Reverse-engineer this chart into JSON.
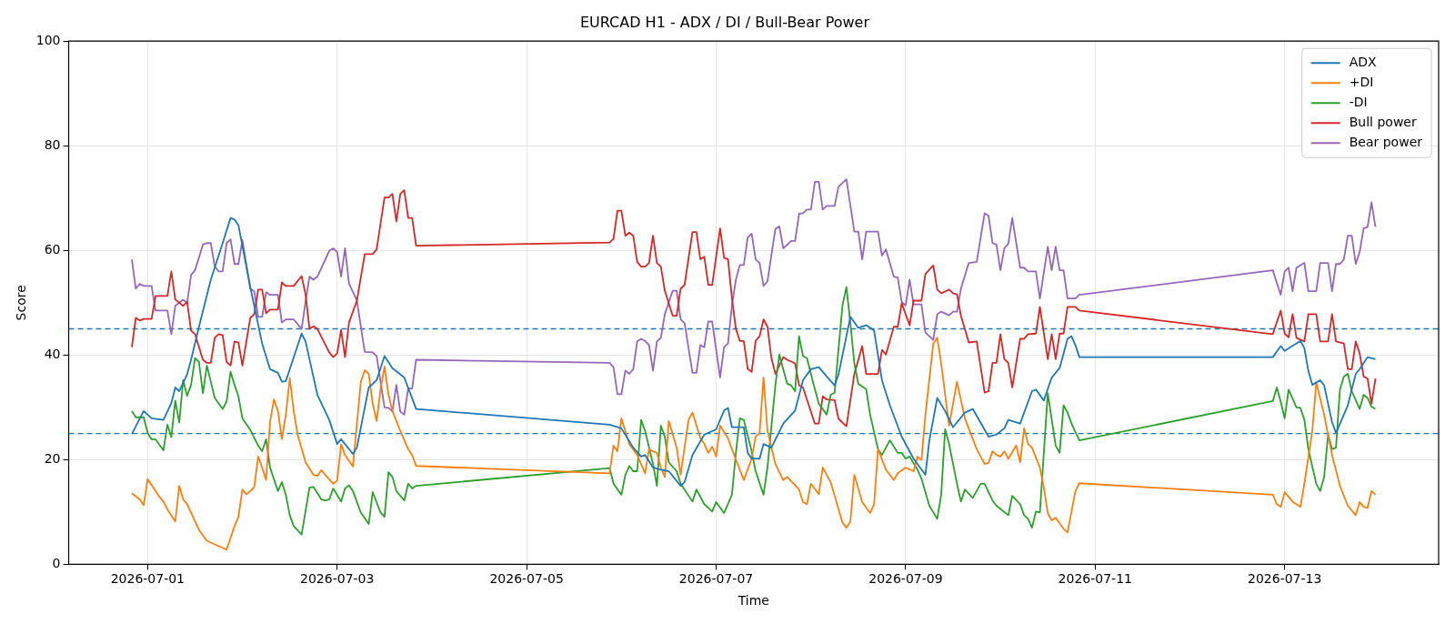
{
  "chart_data": {
    "type": "line",
    "title": "EURCAD H1 - ADX / DI / Bull-Bear Power",
    "xlabel": "Time",
    "ylabel": "Score",
    "xlim": [
      "2026-06-30T04:00",
      "2026-07-14T15:00"
    ],
    "xticks": [
      "2026-07-01",
      "2026-07-03",
      "2026-07-05",
      "2026-07-07",
      "2026-07-09",
      "2026-07-11",
      "2026-07-13"
    ],
    "ylim": [
      0,
      100
    ],
    "yticks": [
      0,
      20,
      40,
      60,
      80,
      100
    ],
    "grid": true,
    "legend": "top right",
    "ref_lines": [
      {
        "axis": "y",
        "value": 45,
        "color": "#1f77b4",
        "line_style": "dashed"
      },
      {
        "axis": "y",
        "value": 25,
        "color": "#1f77b4",
        "line_style": "dashed"
      }
    ],
    "series": [
      {
        "name": "ADX",
        "color": "#1f77b4",
        "x": [
          "2026-06-30T20:00",
          "2026-06-30T23:00",
          "2026-07-01T01:00",
          "2026-07-01T04:00",
          "2026-07-01T06:00",
          "2026-07-01T07:00",
          "2026-07-01T08:00",
          "2026-07-01T10:00",
          "2026-07-01T11:00",
          "2026-07-01T13:00",
          "2026-07-01T16:00",
          "2026-07-01T19:00",
          "2026-07-01T21:00",
          "2026-07-01T22:00",
          "2026-07-01T23:00",
          "2026-07-02T02:00",
          "2026-07-02T05:00",
          "2026-07-02T07:00",
          "2026-07-02T09:00",
          "2026-07-02T10:00",
          "2026-07-02T11:00",
          "2026-07-02T15:00",
          "2026-07-02T16:00",
          "2026-07-02T19:00",
          "2026-07-02T22:00",
          "2026-07-03T00:00",
          "2026-07-03T01:00",
          "2026-07-03T04:00",
          "2026-07-03T05:00",
          "2026-07-03T08:00",
          "2026-07-03T10:00",
          "2026-07-03T12:00",
          "2026-07-03T14:00",
          "2026-07-03T17:00",
          "2026-07-03T20:00",
          "2026-07-05T21:00",
          "2026-07-06T00:00",
          "2026-07-06T03:00",
          "2026-07-06T05:00",
          "2026-07-06T06:00",
          "2026-07-06T08:00",
          "2026-07-06T10:00",
          "2026-07-06T12:00",
          "2026-07-06T15:00",
          "2026-07-06T16:00",
          "2026-07-06T18:00",
          "2026-07-06T21:00",
          "2026-07-07T00:00",
          "2026-07-07T02:00",
          "2026-07-07T03:00",
          "2026-07-07T04:00",
          "2026-07-07T07:00",
          "2026-07-07T08:00",
          "2026-07-07T09:00",
          "2026-07-07T11:00",
          "2026-07-07T12:00",
          "2026-07-07T14:00",
          "2026-07-07T17:00",
          "2026-07-07T20:00",
          "2026-07-07T22:00",
          "2026-07-08T00:00",
          "2026-07-08T02:00",
          "2026-07-08T04:00",
          "2026-07-08T06:00",
          "2026-07-08T07:00",
          "2026-07-08T10:00",
          "2026-07-08T12:00",
          "2026-07-08T14:00",
          "2026-07-08T16:00",
          "2026-07-08T18:00",
          "2026-07-08T20:00",
          "2026-07-08T23:00",
          "2026-07-09T02:00",
          "2026-07-09T05:00",
          "2026-07-09T06:00",
          "2026-07-09T08:00",
          "2026-07-09T10:00",
          "2026-07-09T12:00",
          "2026-07-09T15:00",
          "2026-07-09T17:00",
          "2026-07-09T21:00",
          "2026-07-09T23:00",
          "2026-07-10T01:00",
          "2026-07-10T02:00",
          "2026-07-10T05:00",
          "2026-07-10T08:00",
          "2026-07-10T09:00",
          "2026-07-10T11:00",
          "2026-07-10T13:00",
          "2026-07-10T15:00",
          "2026-07-10T17:00",
          "2026-07-10T18:00",
          "2026-07-10T19:00",
          "2026-07-10T20:00",
          "2026-07-12T21:00",
          "2026-07-12T23:00",
          "2026-07-13T00:00",
          "2026-07-13T04:00",
          "2026-07-13T05:00",
          "2026-07-13T06:00",
          "2026-07-13T07:00",
          "2026-07-13T09:00",
          "2026-07-13T10:00",
          "2026-07-13T12:00",
          "2026-07-13T13:00",
          "2026-07-13T16:00",
          "2026-07-13T18:00",
          "2026-07-13T19:00",
          "2026-07-13T21:00",
          "2026-07-13T23:00"
        ],
        "values": [
          24.9,
          29.3,
          27.9,
          27.6,
          30.8,
          33.8,
          33.1,
          36.3,
          39.1,
          45.4,
          54.4,
          61.4,
          66.2,
          65.9,
          64.8,
          53.0,
          42.2,
          37.3,
          36.6,
          34.9,
          35.0,
          44.1,
          42.6,
          32.4,
          27.6,
          23.0,
          23.9,
          21.1,
          22.3,
          33.8,
          35.2,
          39.8,
          37.5,
          35.7,
          29.7,
          26.7,
          26.0,
          22.3,
          20.6,
          20.9,
          18.5,
          18.1,
          17.8,
          15.0,
          15.7,
          20.9,
          24.8,
          25.8,
          29.4,
          29.9,
          26.2,
          26.2,
          21.3,
          20.2,
          20.2,
          23.0,
          22.3,
          26.9,
          29.4,
          35.2,
          37.3,
          37.7,
          35.9,
          34.2,
          36.3,
          47.3,
          45.2,
          45.7,
          44.7,
          35.2,
          30.4,
          24.4,
          20.2,
          17.1,
          23.7,
          31.8,
          29.3,
          26.2,
          29.0,
          29.7,
          24.4,
          24.8,
          26.0,
          27.6,
          26.9,
          33.1,
          33.4,
          31.3,
          35.7,
          37.5,
          43.1,
          43.6,
          41.9,
          39.6,
          39.6,
          41.7,
          40.8,
          42.7,
          41.3,
          37.0,
          34.3,
          35.2,
          34.2,
          27.2,
          25.1,
          30.4,
          36.4,
          37.3,
          39.6,
          39.2
        ]
      },
      {
        "name": "+DI",
        "color": "#ff7f0e",
        "x": [
          "2026-06-30T20:00",
          "2026-06-30T22:00",
          "2026-06-30T23:00",
          "2026-07-01T00:00",
          "2026-07-01T03:00",
          "2026-07-01T04:00",
          "2026-07-01T05:00",
          "2026-07-01T07:00",
          "2026-07-01T08:00",
          "2026-07-01T09:00",
          "2026-07-01T10:00",
          "2026-07-01T13:00",
          "2026-07-01T15:00",
          "2026-07-01T17:00",
          "2026-07-01T20:00",
          "2026-07-01T22:00",
          "2026-07-01T23:00",
          "2026-07-02T00:00",
          "2026-07-02T01:00",
          "2026-07-02T02:00",
          "2026-07-02T03:00",
          "2026-07-02T04:00",
          "2026-07-02T05:00",
          "2026-07-02T06:00",
          "2026-07-02T07:00",
          "2026-07-02T08:00",
          "2026-07-02T09:00",
          "2026-07-02T10:00",
          "2026-07-02T11:00",
          "2026-07-02T12:00",
          "2026-07-02T13:00",
          "2026-07-02T14:00",
          "2026-07-02T16:00",
          "2026-07-02T18:00",
          "2026-07-02T19:00",
          "2026-07-02T20:00",
          "2026-07-02T21:00",
          "2026-07-02T23:00",
          "2026-07-03T00:00",
          "2026-07-03T01:00",
          "2026-07-03T02:00",
          "2026-07-03T04:00",
          "2026-07-03T06:00",
          "2026-07-03T07:00",
          "2026-07-03T08:00",
          "2026-07-03T09:00",
          "2026-07-03T10:00",
          "2026-07-03T11:00",
          "2026-07-03T12:00",
          "2026-07-03T13:00",
          "2026-07-03T14:00",
          "2026-07-03T16:00",
          "2026-07-03T18:00",
          "2026-07-03T19:00",
          "2026-07-03T20:00",
          "2026-07-05T21:00",
          "2026-07-05T22:00",
          "2026-07-05T23:00",
          "2026-07-06T00:00",
          "2026-07-06T02:00",
          "2026-07-06T04:00",
          "2026-07-06T06:00",
          "2026-07-06T07:00",
          "2026-07-06T08:00",
          "2026-07-06T09:00",
          "2026-07-06T10:00",
          "2026-07-06T11:00",
          "2026-07-06T12:00",
          "2026-07-06T14:00",
          "2026-07-06T15:00",
          "2026-07-06T17:00",
          "2026-07-06T18:00",
          "2026-07-06T20:00",
          "2026-07-06T21:00",
          "2026-07-06T22:00",
          "2026-07-06T23:00",
          "2026-07-07T00:00",
          "2026-07-07T01:00",
          "2026-07-07T03:00",
          "2026-07-07T04:00",
          "2026-07-07T07:00",
          "2026-07-07T09:00",
          "2026-07-07T10:00",
          "2026-07-07T11:00",
          "2026-07-07T12:00",
          "2026-07-07T13:00",
          "2026-07-07T15:00",
          "2026-07-07T17:00",
          "2026-07-07T18:00",
          "2026-07-07T21:00",
          "2026-07-07T22:00",
          "2026-07-07T23:00",
          "2026-07-08T00:00",
          "2026-07-08T02:00",
          "2026-07-08T03:00",
          "2026-07-08T05:00",
          "2026-07-08T08:00",
          "2026-07-08T09:00",
          "2026-07-08T10:00",
          "2026-07-08T11:00",
          "2026-07-08T13:00",
          "2026-07-08T15:00",
          "2026-07-08T16:00",
          "2026-07-08T17:00",
          "2026-07-08T19:00",
          "2026-07-08T21:00",
          "2026-07-08T22:00",
          "2026-07-09T00:00",
          "2026-07-09T02:00",
          "2026-07-09T03:00",
          "2026-07-09T04:00",
          "2026-07-09T05:00",
          "2026-07-09T07:00",
          "2026-07-09T08:00",
          "2026-07-09T09:00",
          "2026-07-09T11:00",
          "2026-07-09T13:00",
          "2026-07-09T15:00",
          "2026-07-09T18:00",
          "2026-07-09T20:00",
          "2026-07-09T21:00",
          "2026-07-09T22:00",
          "2026-07-09T23:00",
          "2026-07-10T00:00",
          "2026-07-10T01:00",
          "2026-07-10T02:00",
          "2026-07-10T04:00",
          "2026-07-10T05:00",
          "2026-07-10T06:00",
          "2026-07-10T07:00",
          "2026-07-10T08:00",
          "2026-07-10T10:00",
          "2026-07-10T11:00",
          "2026-07-10T12:00",
          "2026-07-10T13:00",
          "2026-07-10T14:00",
          "2026-07-10T16:00",
          "2026-07-10T17:00",
          "2026-07-10T19:00",
          "2026-07-10T20:00",
          "2026-07-12T21:00",
          "2026-07-12T22:00",
          "2026-07-12T23:00",
          "2026-07-13T00:00",
          "2026-07-13T02:00",
          "2026-07-13T04:00",
          "2026-07-13T05:00",
          "2026-07-13T07:00",
          "2026-07-13T08:00",
          "2026-07-13T10:00",
          "2026-07-13T12:00",
          "2026-07-13T14:00",
          "2026-07-13T16:00",
          "2026-07-13T18:00",
          "2026-07-13T19:00",
          "2026-07-13T20:00",
          "2026-07-13T21:00",
          "2026-07-13T22:00",
          "2026-07-13T23:00"
        ],
        "values": [
          13.6,
          12.4,
          11.3,
          16.3,
          12.9,
          12.0,
          10.5,
          8.2,
          15.0,
          12.4,
          11.5,
          6.6,
          4.5,
          3.8,
          2.8,
          7.3,
          9.1,
          14.3,
          13.4,
          14.0,
          14.8,
          20.6,
          18.5,
          16.1,
          27.2,
          31.5,
          29.3,
          23.9,
          28.6,
          35.6,
          29.3,
          24.8,
          19.5,
          17.1,
          16.9,
          18.0,
          17.1,
          15.4,
          16.0,
          22.9,
          20.9,
          18.7,
          34.9,
          37.1,
          36.4,
          30.7,
          27.4,
          33.5,
          37.8,
          32.4,
          29.3,
          25.5,
          22.0,
          20.9,
          18.8,
          17.4,
          22.7,
          21.6,
          27.9,
          23.0,
          20.9,
          17.4,
          22.0,
          21.6,
          21.3,
          18.5,
          16.7,
          27.4,
          22.3,
          17.1,
          27.6,
          29.0,
          24.1,
          23.0,
          21.3,
          22.5,
          20.6,
          26.5,
          24.1,
          22.0,
          16.1,
          20.2,
          24.4,
          25.1,
          35.7,
          25.5,
          19.2,
          16.1,
          16.7,
          14.3,
          11.9,
          11.5,
          15.4,
          13.4,
          18.5,
          15.7,
          8.0,
          7.0,
          8.2,
          17.1,
          11.9,
          9.8,
          11.5,
          22.0,
          18.1,
          16.1,
          17.4,
          18.5,
          17.8,
          20.6,
          19.9,
          28.6,
          42.2,
          43.3,
          38.4,
          26.5,
          34.9,
          27.9,
          22.0,
          19.2,
          19.4,
          21.6,
          20.9,
          20.6,
          21.6,
          20.2,
          22.7,
          19.5,
          26.0,
          23.0,
          22.3,
          18.5,
          14.7,
          9.8,
          8.4,
          8.9,
          6.8,
          6.1,
          14.0,
          15.5,
          13.3,
          11.5,
          11.0,
          13.8,
          12.0,
          11.0,
          15.5,
          25.5,
          34.8,
          28.6,
          20.9,
          15.0,
          11.2,
          9.4,
          11.9,
          11.0,
          10.8,
          14.0,
          13.3
        ]
      },
      {
        "name": "-DI",
        "color": "#2ca02c",
        "x": [
          "2026-06-30T20:00",
          "2026-06-30T21:00",
          "2026-06-30T23:00",
          "2026-07-01T00:00",
          "2026-07-01T01:00",
          "2026-07-01T02:00",
          "2026-07-01T04:00",
          "2026-07-01T05:00",
          "2026-07-01T06:00",
          "2026-07-01T07:00",
          "2026-07-01T08:00",
          "2026-07-01T09:00",
          "2026-07-01T10:00",
          "2026-07-01T11:00",
          "2026-07-01T12:00",
          "2026-07-01T13:00",
          "2026-07-01T14:00",
          "2026-07-01T15:00",
          "2026-07-01T16:00",
          "2026-07-01T17:00",
          "2026-07-01T19:00",
          "2026-07-01T20:00",
          "2026-07-01T21:00",
          "2026-07-01T22:00",
          "2026-07-01T23:00",
          "2026-07-02T00:00",
          "2026-07-02T02:00",
          "2026-07-02T04:00",
          "2026-07-02T05:00",
          "2026-07-02T06:00",
          "2026-07-02T07:00",
          "2026-07-02T09:00",
          "2026-07-02T10:00",
          "2026-07-02T11:00",
          "2026-07-02T12:00",
          "2026-07-02T13:00",
          "2026-07-02T15:00",
          "2026-07-02T17:00",
          "2026-07-02T18:00",
          "2026-07-02T20:00",
          "2026-07-02T21:00",
          "2026-07-02T22:00",
          "2026-07-02T23:00",
          "2026-07-03T01:00",
          "2026-07-03T02:00",
          "2026-07-03T03:00",
          "2026-07-03T04:00",
          "2026-07-03T06:00",
          "2026-07-03T08:00",
          "2026-07-03T09:00",
          "2026-07-03T11:00",
          "2026-07-03T12:00",
          "2026-07-03T13:00",
          "2026-07-03T14:00",
          "2026-07-03T15:00",
          "2026-07-03T17:00",
          "2026-07-03T18:00",
          "2026-07-03T19:00",
          "2026-07-03T20:00",
          "2026-07-05T21:00",
          "2026-07-05T22:00",
          "2026-07-06T00:00",
          "2026-07-06T01:00",
          "2026-07-06T02:00",
          "2026-07-06T03:00",
          "2026-07-06T04:00",
          "2026-07-06T05:00",
          "2026-07-06T06:00",
          "2026-07-06T08:00",
          "2026-07-06T09:00",
          "2026-07-06T10:00",
          "2026-07-06T11:00",
          "2026-07-06T12:00",
          "2026-07-06T14:00",
          "2026-07-06T15:00",
          "2026-07-06T18:00",
          "2026-07-06T19:00",
          "2026-07-06T21:00",
          "2026-07-06T23:00",
          "2026-07-07T00:00",
          "2026-07-07T02:00",
          "2026-07-07T04:00",
          "2026-07-07T05:00",
          "2026-07-07T06:00",
          "2026-07-07T07:00",
          "2026-07-07T09:00",
          "2026-07-07T10:00",
          "2026-07-07T12:00",
          "2026-07-07T13:00",
          "2026-07-07T15:00",
          "2026-07-07T16:00",
          "2026-07-07T18:00",
          "2026-07-07T19:00",
          "2026-07-07T20:00",
          "2026-07-07T21:00",
          "2026-07-07T22:00",
          "2026-07-07T23:00",
          "2026-07-08T01:00",
          "2026-07-08T02:00",
          "2026-07-08T04:00",
          "2026-07-08T05:00",
          "2026-07-08T06:00",
          "2026-07-08T08:00",
          "2026-07-08T09:00",
          "2026-07-08T10:00",
          "2026-07-08T11:00",
          "2026-07-08T12:00",
          "2026-07-08T14:00",
          "2026-07-08T15:00",
          "2026-07-08T17:00",
          "2026-07-08T18:00",
          "2026-07-08T20:00",
          "2026-07-08T22:00",
          "2026-07-08T23:00",
          "2026-07-09T00:00",
          "2026-07-09T01:00",
          "2026-07-09T03:00",
          "2026-07-09T04:00",
          "2026-07-09T06:00",
          "2026-07-09T08:00",
          "2026-07-09T09:00",
          "2026-07-09T10:00",
          "2026-07-09T11:00",
          "2026-07-09T13:00",
          "2026-07-09T14:00",
          "2026-07-09T15:00",
          "2026-07-09T17:00",
          "2026-07-09T19:00",
          "2026-07-09T20:00",
          "2026-07-09T22:00",
          "2026-07-09T23:00",
          "2026-07-10T02:00",
          "2026-07-10T03:00",
          "2026-07-10T05:00",
          "2026-07-10T06:00",
          "2026-07-10T07:00",
          "2026-07-10T08:00",
          "2026-07-10T09:00",
          "2026-07-10T10:00",
          "2026-07-10T12:00",
          "2026-07-10T14:00",
          "2026-07-10T15:00",
          "2026-07-10T16:00",
          "2026-07-10T17:00",
          "2026-07-10T18:00",
          "2026-07-10T20:00",
          "2026-07-12T21:00",
          "2026-07-12T22:00",
          "2026-07-12T23:00",
          "2026-07-13T00:00",
          "2026-07-13T01:00",
          "2026-07-13T03:00",
          "2026-07-13T04:00",
          "2026-07-13T05:00",
          "2026-07-13T06:00",
          "2026-07-13T08:00",
          "2026-07-13T09:00",
          "2026-07-13T10:00",
          "2026-07-13T11:00",
          "2026-07-13T12:00",
          "2026-07-13T13:00",
          "2026-07-13T14:00",
          "2026-07-13T15:00",
          "2026-07-13T16:00",
          "2026-07-13T17:00",
          "2026-07-13T19:00",
          "2026-07-13T20:00",
          "2026-07-13T21:00",
          "2026-07-13T22:00",
          "2026-07-13T23:00"
        ],
        "values": [
          29.3,
          28.1,
          28.1,
          25.1,
          23.9,
          23.9,
          21.8,
          26.7,
          24.3,
          31.3,
          27.1,
          35.2,
          32.2,
          34.3,
          39.4,
          38.7,
          32.7,
          38.0,
          34.9,
          31.8,
          29.7,
          31.1,
          36.8,
          34.3,
          32.1,
          27.9,
          25.7,
          22.7,
          21.6,
          23.9,
          18.5,
          14.0,
          15.7,
          13.3,
          9.4,
          7.3,
          5.7,
          14.7,
          14.8,
          12.4,
          12.2,
          12.4,
          14.5,
          12.0,
          14.5,
          15.1,
          14.0,
          9.9,
          7.7,
          13.8,
          9.9,
          9.1,
          17.6,
          16.7,
          14.0,
          12.2,
          15.4,
          14.5,
          15.0,
          18.4,
          15.4,
          13.3,
          17.1,
          18.8,
          17.8,
          17.8,
          27.6,
          25.5,
          19.2,
          15.0,
          26.5,
          24.4,
          19.5,
          17.8,
          15.4,
          12.0,
          14.3,
          11.5,
          10.1,
          11.9,
          9.8,
          13.3,
          21.3,
          27.9,
          27.6,
          21.6,
          17.8,
          13.3,
          18.5,
          34.2,
          40.1,
          34.5,
          34.2,
          33.1,
          43.6,
          39.8,
          39.4,
          33.5,
          30.7,
          28.6,
          32.4,
          32.8,
          49.5,
          53.0,
          46.1,
          38.4,
          34.5,
          33.5,
          28.6,
          22.0,
          20.9,
          23.7,
          21.3,
          21.3,
          20.2,
          20.6,
          18.1,
          16.4,
          11.2,
          8.7,
          13.3,
          25.8,
          23.0,
          15.4,
          12.0,
          14.3,
          12.7,
          15.4,
          15.4,
          12.2,
          11.2,
          9.4,
          13.1,
          11.5,
          9.4,
          8.7,
          7.0,
          10.1,
          9.9,
          32.7,
          22.7,
          21.3,
          30.4,
          29.0,
          26.9,
          23.7,
          31.2,
          33.8,
          31.1,
          27.9,
          33.4,
          30.0,
          29.9,
          27.6,
          22.0,
          15.4,
          14.0,
          16.7,
          24.8,
          22.0,
          22.3,
          33.4,
          35.9,
          36.4,
          33.1,
          29.7,
          32.4,
          31.8,
          30.1,
          29.7
        ]
      },
      {
        "name": "Bull power",
        "color": "#d62728",
        "x": [
          "2026-06-30T20:00",
          "2026-06-30T21:00",
          "2026-06-30T22:00",
          "2026-06-30T23:00",
          "2026-07-01T01:00",
          "2026-07-01T02:00",
          "2026-07-01T05:00",
          "2026-07-01T06:00",
          "2026-07-01T07:00",
          "2026-07-01T09:00",
          "2026-07-01T10:00",
          "2026-07-01T11:00",
          "2026-07-01T12:00",
          "2026-07-01T14:00",
          "2026-07-01T15:00",
          "2026-07-01T16:00",
          "2026-07-01T17:00",
          "2026-07-01T18:00",
          "2026-07-01T19:00",
          "2026-07-01T20:00",
          "2026-07-01T21:00",
          "2026-07-01T22:00",
          "2026-07-01T23:00",
          "2026-07-02T00:00",
          "2026-07-02T02:00",
          "2026-07-02T03:00",
          "2026-07-02T04:00",
          "2026-07-02T05:00",
          "2026-07-02T06:00",
          "2026-07-02T07:00",
          "2026-07-02T09:00",
          "2026-07-02T10:00",
          "2026-07-02T11:00",
          "2026-07-02T13:00",
          "2026-07-02T15:00",
          "2026-07-02T16:00",
          "2026-07-02T17:00",
          "2026-07-02T18:00",
          "2026-07-02T19:00",
          "2026-07-02T22:00",
          "2026-07-02T23:00",
          "2026-07-03T00:00",
          "2026-07-03T01:00",
          "2026-07-03T02:00",
          "2026-07-03T03:00",
          "2026-07-03T05:00",
          "2026-07-03T07:00",
          "2026-07-03T09:00",
          "2026-07-03T10:00",
          "2026-07-03T12:00",
          "2026-07-03T13:00",
          "2026-07-03T14:00",
          "2026-07-03T15:00",
          "2026-07-03T16:00",
          "2026-07-03T17:00",
          "2026-07-03T18:00",
          "2026-07-03T19:00",
          "2026-07-03T20:00",
          "2026-07-05T21:00",
          "2026-07-05T22:00",
          "2026-07-05T23:00",
          "2026-07-06T00:00",
          "2026-07-06T01:00",
          "2026-07-06T02:00",
          "2026-07-06T03:00",
          "2026-07-06T04:00",
          "2026-07-06T05:00",
          "2026-07-06T06:00",
          "2026-07-06T07:00",
          "2026-07-06T08:00",
          "2026-07-06T09:00",
          "2026-07-06T10:00",
          "2026-07-06T11:00",
          "2026-07-06T13:00",
          "2026-07-06T14:00",
          "2026-07-06T15:00",
          "2026-07-06T16:00",
          "2026-07-06T18:00",
          "2026-07-06T19:00",
          "2026-07-06T20:00",
          "2026-07-06T21:00",
          "2026-07-06T22:00",
          "2026-07-06T23:00",
          "2026-07-07T01:00",
          "2026-07-07T02:00",
          "2026-07-07T03:00",
          "2026-07-07T04:00",
          "2026-07-07T05:00",
          "2026-07-07T06:00",
          "2026-07-07T07:00",
          "2026-07-07T08:00",
          "2026-07-07T09:00",
          "2026-07-07T10:00",
          "2026-07-07T11:00",
          "2026-07-07T12:00",
          "2026-07-07T13:00",
          "2026-07-07T14:00",
          "2026-07-07T15:00",
          "2026-07-07T17:00",
          "2026-07-07T18:00",
          "2026-07-07T20:00",
          "2026-07-07T21:00",
          "2026-07-07T22:00",
          "2026-07-07T23:00",
          "2026-07-08T01:00",
          "2026-07-08T02:00",
          "2026-07-08T03:00",
          "2026-07-08T04:00",
          "2026-07-08T06:00",
          "2026-07-08T07:00",
          "2026-07-08T09:00",
          "2026-07-08T10:00",
          "2026-07-08T11:00",
          "2026-07-08T13:00",
          "2026-07-08T14:00",
          "2026-07-08T17:00",
          "2026-07-08T18:00",
          "2026-07-08T19:00",
          "2026-07-08T21:00",
          "2026-07-08T22:00",
          "2026-07-08T23:00",
          "2026-07-09T01:00",
          "2026-07-09T02:00",
          "2026-07-09T04:00",
          "2026-07-09T05:00",
          "2026-07-09T07:00",
          "2026-07-09T08:00",
          "2026-07-09T09:00",
          "2026-07-09T11:00",
          "2026-07-09T12:00",
          "2026-07-09T13:00",
          "2026-07-09T14:00",
          "2026-07-09T16:00",
          "2026-07-09T18:00",
          "2026-07-09T20:00",
          "2026-07-09T21:00",
          "2026-07-09T22:00",
          "2026-07-09T23:00",
          "2026-07-10T00:00",
          "2026-07-10T01:00",
          "2026-07-10T02:00",
          "2026-07-10T03:00",
          "2026-07-10T05:00",
          "2026-07-10T06:00",
          "2026-07-10T07:00",
          "2026-07-10T09:00",
          "2026-07-10T10:00",
          "2026-07-10T12:00",
          "2026-07-10T13:00",
          "2026-07-10T14:00",
          "2026-07-10T15:00",
          "2026-07-10T16:00",
          "2026-07-10T17:00",
          "2026-07-10T19:00",
          "2026-07-10T20:00",
          "2026-07-12T21:00",
          "2026-07-12T23:00",
          "2026-07-13T00:00",
          "2026-07-13T01:00",
          "2026-07-13T02:00",
          "2026-07-13T03:00",
          "2026-07-13T05:00",
          "2026-07-13T06:00",
          "2026-07-13T08:00",
          "2026-07-13T09:00",
          "2026-07-13T11:00",
          "2026-07-13T12:00",
          "2026-07-13T13:00",
          "2026-07-13T15:00",
          "2026-07-13T16:00",
          "2026-07-13T17:00",
          "2026-07-13T18:00",
          "2026-07-13T19:00",
          "2026-07-13T20:00",
          "2026-07-13T21:00",
          "2026-07-13T22:00",
          "2026-07-13T23:00"
        ],
        "values": [
          41.5,
          47.1,
          46.6,
          46.9,
          46.9,
          51.3,
          51.3,
          56.0,
          50.6,
          49.4,
          50.2,
          44.7,
          44.0,
          39.1,
          38.5,
          38.5,
          43.3,
          44.0,
          43.8,
          38.7,
          38.0,
          42.6,
          42.4,
          38.0,
          47.1,
          47.8,
          52.5,
          52.5,
          48.0,
          48.7,
          48.7,
          53.9,
          53.2,
          53.2,
          55.1,
          51.6,
          45.0,
          45.5,
          45.0,
          40.5,
          39.6,
          40.3,
          44.8,
          39.6,
          46.2,
          50.4,
          59.3,
          59.3,
          60.2,
          70.1,
          70.1,
          70.8,
          65.5,
          70.8,
          71.5,
          66.2,
          66.2,
          60.9,
          61.5,
          62.2,
          67.6,
          67.6,
          62.8,
          63.4,
          62.8,
          57.8,
          56.9,
          56.9,
          57.6,
          62.8,
          57.6,
          56.9,
          52.3,
          47.5,
          47.5,
          52.7,
          53.4,
          63.5,
          63.5,
          58.3,
          58.8,
          53.4,
          53.4,
          64.2,
          58.6,
          58.3,
          50.9,
          45.0,
          42.7,
          42.7,
          37.3,
          36.8,
          42.7,
          43.6,
          46.8,
          45.4,
          39.4,
          36.4,
          39.6,
          39.1,
          38.4,
          34.2,
          33.8,
          31.5,
          26.9,
          26.9,
          32.1,
          31.5,
          31.4,
          27.8,
          26.4,
          31.4,
          36.4,
          41.7,
          36.4,
          36.4,
          41.0,
          40.1,
          45.4,
          45.4,
          49.9,
          45.7,
          50.4,
          50.4,
          55.5,
          57.1,
          52.5,
          51.8,
          52.5,
          51.8,
          51.6,
          47.5,
          42.4,
          42.6,
          32.8,
          33.1,
          38.5,
          38.5,
          44.0,
          39.2,
          38.5,
          33.8,
          43.1,
          43.1,
          44.0,
          44.1,
          49.2,
          39.2,
          44.0,
          39.2,
          44.1,
          44.1,
          49.2,
          49.2,
          48.5,
          44.0,
          48.5,
          44.1,
          43.4,
          47.8,
          43.3,
          42.6,
          47.8,
          47.8,
          42.6,
          42.6,
          47.8,
          42.6,
          42.2,
          37.3,
          37.3,
          42.6,
          40.3,
          35.9,
          35.5,
          30.7,
          35.5
        ]
      },
      {
        "name": "Bear power",
        "color": "#9467bd",
        "x": [
          "2026-06-30T20:00",
          "2026-06-30T21:00",
          "2026-06-30T22:00",
          "2026-06-30T23:00",
          "2026-07-01T01:00",
          "2026-07-01T02:00",
          "2026-07-01T05:00",
          "2026-07-01T06:00",
          "2026-07-01T07:00",
          "2026-07-01T09:00",
          "2026-07-01T10:00",
          "2026-07-01T11:00",
          "2026-07-01T12:00",
          "2026-07-01T14:00",
          "2026-07-01T15:00",
          "2026-07-01T16:00",
          "2026-07-01T17:00",
          "2026-07-01T18:00",
          "2026-07-01T19:00",
          "2026-07-01T20:00",
          "2026-07-01T21:00",
          "2026-07-01T22:00",
          "2026-07-01T23:00",
          "2026-07-02T00:00",
          "2026-07-02T02:00",
          "2026-07-02T03:00",
          "2026-07-02T04:00",
          "2026-07-02T05:00",
          "2026-07-02T06:00",
          "2026-07-02T07:00",
          "2026-07-02T09:00",
          "2026-07-02T10:00",
          "2026-07-02T11:00",
          "2026-07-02T13:00",
          "2026-07-02T15:00",
          "2026-07-02T16:00",
          "2026-07-02T17:00",
          "2026-07-02T18:00",
          "2026-07-02T19:00",
          "2026-07-02T22:00",
          "2026-07-02T23:00",
          "2026-07-03T00:00",
          "2026-07-03T01:00",
          "2026-07-03T02:00",
          "2026-07-03T03:00",
          "2026-07-03T05:00",
          "2026-07-03T07:00",
          "2026-07-03T09:00",
          "2026-07-03T10:00",
          "2026-07-03T12:00",
          "2026-07-03T13:00",
          "2026-07-03T14:00",
          "2026-07-03T15:00",
          "2026-07-03T16:00",
          "2026-07-03T17:00",
          "2026-07-03T18:00",
          "2026-07-03T19:00",
          "2026-07-03T20:00",
          "2026-07-05T21:00",
          "2026-07-05T22:00",
          "2026-07-05T23:00",
          "2026-07-06T00:00",
          "2026-07-06T01:00",
          "2026-07-06T02:00",
          "2026-07-06T03:00",
          "2026-07-06T04:00",
          "2026-07-06T05:00",
          "2026-07-06T06:00",
          "2026-07-06T07:00",
          "2026-07-06T08:00",
          "2026-07-06T09:00",
          "2026-07-06T10:00",
          "2026-07-06T11:00",
          "2026-07-06T13:00",
          "2026-07-06T14:00",
          "2026-07-06T15:00",
          "2026-07-06T16:00",
          "2026-07-06T18:00",
          "2026-07-06T19:00",
          "2026-07-06T20:00",
          "2026-07-06T21:00",
          "2026-07-06T22:00",
          "2026-07-06T23:00",
          "2026-07-07T01:00",
          "2026-07-07T02:00",
          "2026-07-07T03:00",
          "2026-07-07T04:00",
          "2026-07-07T05:00",
          "2026-07-07T06:00",
          "2026-07-07T07:00",
          "2026-07-07T08:00",
          "2026-07-07T09:00",
          "2026-07-07T10:00",
          "2026-07-07T11:00",
          "2026-07-07T12:00",
          "2026-07-07T13:00",
          "2026-07-07T15:00",
          "2026-07-07T16:00",
          "2026-07-07T17:00",
          "2026-07-07T19:00",
          "2026-07-07T20:00",
          "2026-07-07T21:00",
          "2026-07-07T22:00",
          "2026-07-07T23:00",
          "2026-07-08T00:00",
          "2026-07-08T01:00",
          "2026-07-08T02:00",
          "2026-07-08T03:00",
          "2026-07-08T04:00",
          "2026-07-08T06:00",
          "2026-07-08T07:00",
          "2026-07-08T09:00",
          "2026-07-08T11:00",
          "2026-07-08T12:00",
          "2026-07-08T13:00",
          "2026-07-08T14:00",
          "2026-07-08T17:00",
          "2026-07-08T18:00",
          "2026-07-08T19:00",
          "2026-07-08T21:00",
          "2026-07-08T22:00",
          "2026-07-08T23:00",
          "2026-07-09T00:00",
          "2026-07-09T01:00",
          "2026-07-09T02:00",
          "2026-07-09T04:00",
          "2026-07-09T05:00",
          "2026-07-09T07:00",
          "2026-07-09T08:00",
          "2026-07-09T09:00",
          "2026-07-09T11:00",
          "2026-07-09T12:00",
          "2026-07-09T13:00",
          "2026-07-09T14:00",
          "2026-07-09T16:00",
          "2026-07-09T18:00",
          "2026-07-09T20:00",
          "2026-07-09T21:00",
          "2026-07-09T22:00",
          "2026-07-09T23:00",
          "2026-07-10T00:00",
          "2026-07-10T01:00",
          "2026-07-10T02:00",
          "2026-07-10T03:00",
          "2026-07-10T05:00",
          "2026-07-10T06:00",
          "2026-07-10T07:00",
          "2026-07-10T09:00",
          "2026-07-10T10:00",
          "2026-07-10T12:00",
          "2026-07-10T13:00",
          "2026-07-10T14:00",
          "2026-07-10T15:00",
          "2026-07-10T16:00",
          "2026-07-10T17:00",
          "2026-07-10T19:00",
          "2026-07-10T20:00",
          "2026-07-12T21:00",
          "2026-07-12T23:00",
          "2026-07-13T00:00",
          "2026-07-13T01:00",
          "2026-07-13T02:00",
          "2026-07-13T03:00",
          "2026-07-13T05:00",
          "2026-07-13T06:00",
          "2026-07-13T08:00",
          "2026-07-13T09:00",
          "2026-07-13T11:00",
          "2026-07-13T12:00",
          "2026-07-13T13:00",
          "2026-07-13T14:00",
          "2026-07-13T15:00",
          "2026-07-13T16:00",
          "2026-07-13T17:00",
          "2026-07-13T18:00",
          "2026-07-13T19:00",
          "2026-07-13T20:00",
          "2026-07-13T21:00",
          "2026-07-13T22:00",
          "2026-07-13T23:00"
        ],
        "values": [
          58.3,
          52.7,
          53.6,
          53.2,
          53.2,
          48.5,
          48.5,
          44.0,
          49.4,
          50.6,
          49.9,
          55.3,
          56.2,
          61.1,
          61.4,
          61.4,
          56.9,
          56.0,
          56.0,
          61.4,
          62.1,
          57.4,
          57.4,
          62.0,
          52.7,
          52.2,
          47.3,
          47.3,
          52.0,
          51.5,
          51.5,
          46.2,
          46.8,
          46.8,
          45.0,
          50.2,
          55.0,
          54.4,
          55.0,
          59.9,
          60.4,
          59.7,
          55.0,
          60.4,
          53.7,
          50.4,
          40.6,
          40.5,
          39.8,
          30.0,
          29.9,
          29.2,
          34.3,
          29.2,
          28.6,
          33.6,
          33.6,
          39.1,
          38.5,
          37.7,
          32.5,
          32.5,
          37.0,
          36.4,
          37.3,
          42.6,
          43.1,
          42.7,
          41.9,
          37.0,
          42.6,
          43.3,
          47.8,
          52.3,
          52.3,
          46.8,
          46.1,
          36.6,
          36.6,
          41.9,
          41.5,
          46.4,
          46.4,
          35.7,
          41.5,
          42.2,
          49.5,
          54.4,
          57.2,
          57.2,
          62.5,
          63.2,
          58.3,
          57.6,
          53.2,
          54.1,
          64.1,
          64.6,
          60.4,
          61.8,
          61.8,
          67.0,
          67.1,
          67.8,
          67.8,
          73.1,
          73.1,
          67.8,
          68.5,
          68.5,
          72.2,
          73.6,
          63.6,
          63.6,
          58.3,
          63.6,
          63.6,
          59.0,
          60.2,
          55.0,
          54.8,
          50.1,
          49.5,
          54.4,
          49.7,
          49.7,
          44.3,
          42.9,
          47.8,
          48.3,
          47.6,
          48.3,
          48.3,
          52.7,
          57.6,
          57.8,
          67.1,
          66.6,
          61.4,
          61.1,
          56.2,
          60.4,
          61.3,
          66.2,
          56.7,
          56.7,
          56.0,
          56.0,
          50.8,
          60.7,
          56.2,
          60.7,
          56.2,
          56.2,
          50.8,
          50.8,
          51.5,
          56.2,
          51.5,
          56.0,
          56.7,
          52.2,
          56.7,
          57.6,
          52.2,
          52.2,
          57.6,
          57.6,
          52.2,
          57.4,
          57.4,
          58.3,
          62.8,
          62.8,
          57.4,
          59.7,
          64.2,
          64.5,
          69.2,
          64.5
        ]
      }
    ]
  }
}
